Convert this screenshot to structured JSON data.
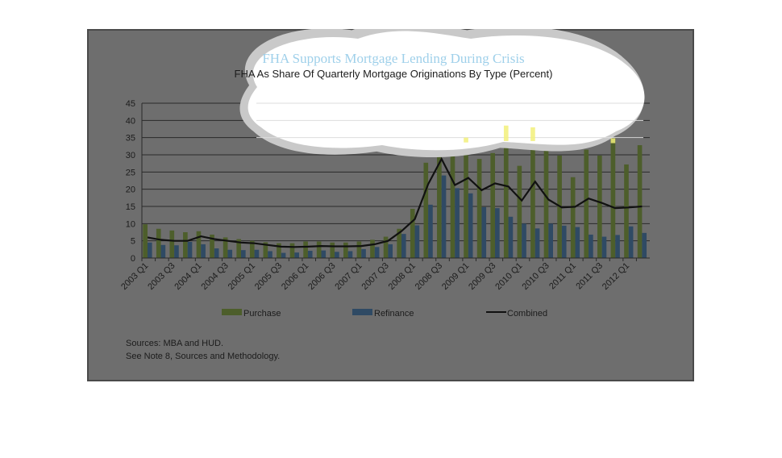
{
  "colors": {
    "frame": "#6e6e6e",
    "frame_border": "#4a4a4a",
    "gridline": "#2a2a2a",
    "purchase": "#4d5e2b",
    "refinance": "#2f4a64",
    "combined": "#111111",
    "highlight": "#f2f07a",
    "cloud": "#ffffff",
    "cloud_halo": "#c9c9c9"
  },
  "sources": {
    "line1": "Sources:  MBA and HUD.",
    "line2": "See Note 8, Sources and Methodology."
  },
  "chart_data": {
    "type": "bar",
    "title": "FHA Supports Mortgage Lending During Crisis",
    "subtitle": "FHA As Share Of Quarterly Mortgage Originations By Type (Percent)",
    "ylim": [
      0,
      45
    ],
    "yticks": [
      "0",
      "5",
      "10",
      "15",
      "20",
      "25",
      "30",
      "35",
      "40",
      "45"
    ],
    "grid": true,
    "legend_position": "bottom",
    "categories": [
      "2003 Q1",
      "2003 Q2",
      "2003 Q3",
      "2003 Q4",
      "2004 Q1",
      "2004 Q2",
      "2004 Q3",
      "2004 Q4",
      "2005 Q1",
      "2005 Q2",
      "2005 Q3",
      "2005 Q4",
      "2006 Q1",
      "2006 Q2",
      "2006 Q3",
      "2006 Q4",
      "2007 Q1",
      "2007 Q2",
      "2007 Q3",
      "2007 Q4",
      "2008 Q1",
      "2008 Q2",
      "2008 Q3",
      "2008 Q4",
      "2009 Q1",
      "2009 Q2",
      "2009 Q3",
      "2009 Q4",
      "2010 Q1",
      "2010 Q2",
      "2010 Q3",
      "2010 Q4",
      "2011 Q1",
      "2011 Q2",
      "2011 Q3",
      "2011 Q4",
      "2012 Q1",
      "2012 Q2"
    ],
    "tick_labels": [
      "2003 Q1",
      "2003 Q3",
      "2004 Q1",
      "2004 Q3",
      "2005 Q1",
      "2005 Q3",
      "2006 Q1",
      "2006 Q3",
      "2007 Q1",
      "2007 Q3",
      "2008 Q1",
      "2008 Q3",
      "2009 Q1",
      "2009 Q3",
      "2010 Q1",
      "2010 Q3",
      "2011 Q1",
      "2011 Q3",
      "2012 Q1"
    ],
    "series": [
      {
        "name": "Purchase",
        "type": "bar",
        "values": [
          9.8,
          8.5,
          8,
          7.5,
          7.8,
          6.8,
          6,
          5.5,
          5,
          4.6,
          4.3,
          4.3,
          4.8,
          4.8,
          4.5,
          4.5,
          4.8,
          5.3,
          6.2,
          8.5,
          14.3,
          27.7,
          31.5,
          30.5,
          35,
          28.8,
          30.5,
          38.5,
          26.8,
          38,
          32.5,
          29.8,
          23.5,
          31.5,
          29.8,
          34.8,
          27.2,
          32.8
        ]
      },
      {
        "name": "Refinance",
        "type": "bar",
        "values": [
          4.5,
          3.8,
          3.7,
          4.7,
          4,
          2.8,
          2.4,
          2.3,
          2.4,
          2,
          1.5,
          1.6,
          2.1,
          2.2,
          1.8,
          2,
          2.6,
          3.2,
          4,
          7,
          9.5,
          15.5,
          24,
          20.3,
          18.8,
          14.8,
          14.5,
          12,
          10,
          8.6,
          10,
          9.4,
          9,
          6.8,
          6.2,
          6.7,
          9.2,
          7.3
        ]
      },
      {
        "name": "Combined",
        "type": "line",
        "values": [
          6,
          5.3,
          5,
          5,
          6.3,
          5.5,
          5,
          4.5,
          4.3,
          3.8,
          3.3,
          3.2,
          3.3,
          3.5,
          3.4,
          3.4,
          3.5,
          4,
          5,
          7.8,
          11.3,
          21.5,
          28.8,
          21.2,
          23.3,
          19.7,
          21.7,
          20.8,
          16.7,
          22.2,
          17,
          14.7,
          14.9,
          17.3,
          16,
          14.5,
          14.7,
          15
        ]
      }
    ]
  }
}
